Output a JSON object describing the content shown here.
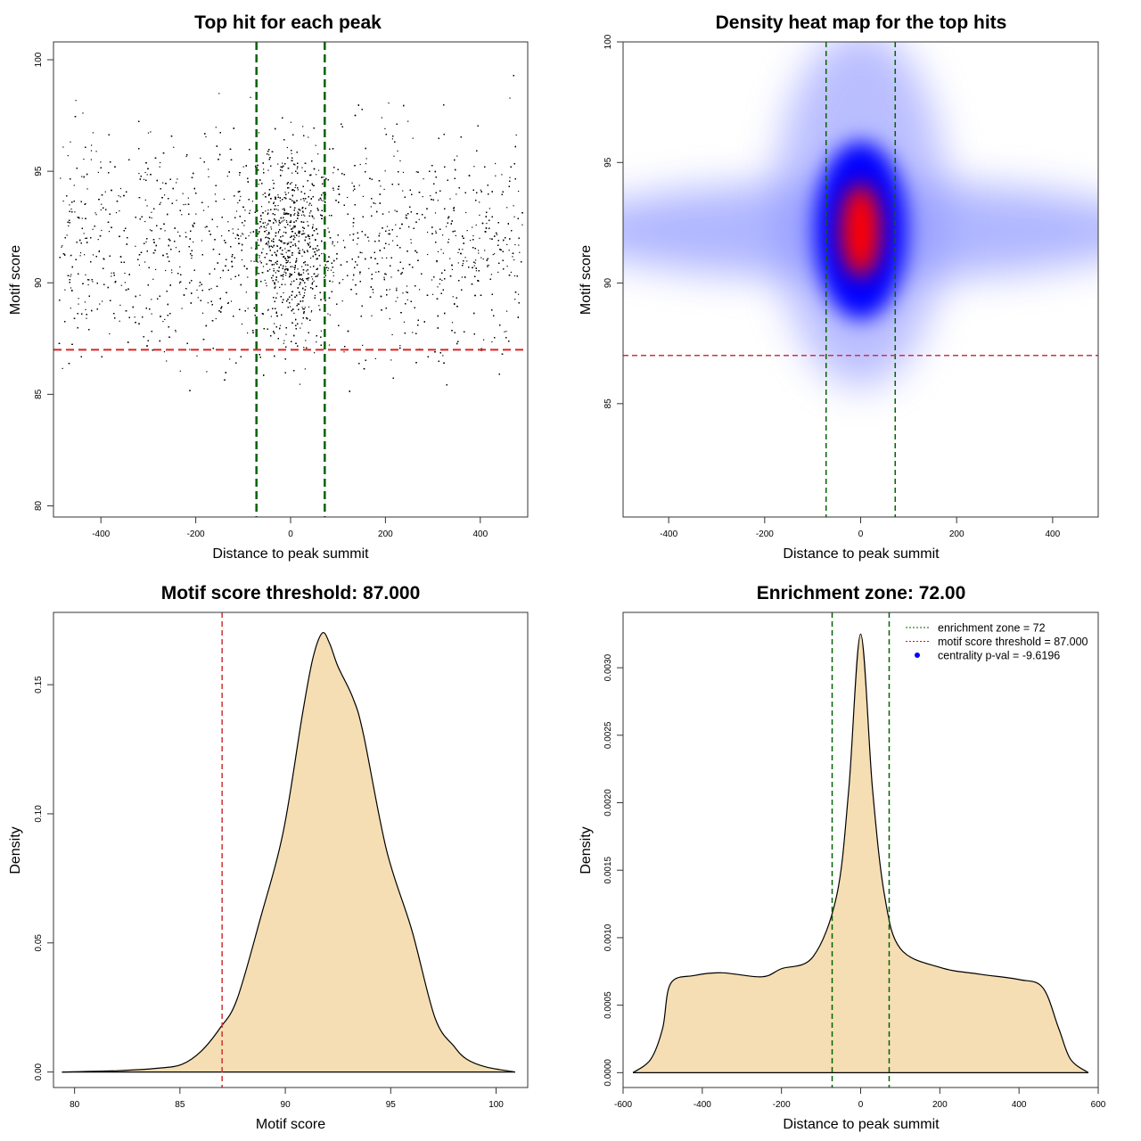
{
  "chart_data": [
    {
      "type": "scatter",
      "title": "Top hit for each peak",
      "xlabel": "Distance to peak summit",
      "ylabel": "Motif score",
      "xlim": [
        -500,
        500
      ],
      "ylim": [
        79.5,
        100.8
      ],
      "xticks": [
        -400,
        -200,
        0,
        200,
        400
      ],
      "yticks": [
        80,
        85,
        90,
        95,
        100
      ],
      "points_description_visible": null,
      "vlines": [
        -72,
        72
      ],
      "hline": 87,
      "colors": {
        "points": "#000000",
        "vlines": "#006400",
        "hline": "#dd2222"
      }
    },
    {
      "type": "heatmap",
      "title": "Density heat map for the top hits",
      "xlabel": "Distance to peak summit",
      "ylabel": "Motif score",
      "xlim": [
        -495,
        495
      ],
      "ylim": [
        80.3,
        100
      ],
      "xticks": [
        -400,
        -200,
        0,
        200,
        400
      ],
      "yticks": [
        85,
        90,
        95,
        100
      ],
      "density_peak": {
        "x": 0,
        "y": 92
      },
      "vlines": [
        -72,
        72
      ],
      "hline": 87,
      "colors": {
        "low": "#ffffff",
        "mid": "#0000ff",
        "high": "#ff0000",
        "vlines": "#006400",
        "hline": "#cc3344"
      }
    },
    {
      "type": "area",
      "title": "Motif score threshold: 87.000",
      "xlabel": "Motif score",
      "ylabel": "Density",
      "xlim": [
        79,
        101.5
      ],
      "ylim": [
        -0.006,
        0.178
      ],
      "xticks": [
        80,
        85,
        90,
        95,
        100
      ],
      "yticks": [
        0.0,
        0.05,
        0.1,
        0.15
      ],
      "ytick_labels": [
        "0.00",
        "0.05",
        "0.10",
        "0.15"
      ],
      "x": [
        79.4,
        82,
        84,
        85.1,
        86,
        86.9,
        87.7,
        88.8,
        89.9,
        90.8,
        91.3,
        91.75,
        92.1,
        92.5,
        93.2,
        93.7,
        94.8,
        96.0,
        97.1,
        98.0,
        98.6,
        99.5,
        100.9
      ],
      "y": [
        0,
        0.0005,
        0.0015,
        0.003,
        0.008,
        0.017,
        0.028,
        0.059,
        0.093,
        0.138,
        0.16,
        0.17,
        0.166,
        0.157,
        0.145,
        0.131,
        0.086,
        0.055,
        0.021,
        0.01,
        0.005,
        0.002,
        0
      ],
      "vline": 87,
      "colors": {
        "fill": "#f5deb3",
        "line": "#000000",
        "vline": "#cc3333"
      }
    },
    {
      "type": "area",
      "title": "Enrichment zone: 72.00",
      "xlabel": "Distance to peak summit",
      "ylabel": "Density",
      "xlim": [
        -600,
        600
      ],
      "ylim": [
        -0.00011,
        0.00341
      ],
      "xticks": [
        -600,
        -400,
        -200,
        0,
        200,
        400,
        600
      ],
      "yticks": [
        0.0,
        0.0005,
        0.001,
        0.0015,
        0.002,
        0.0025,
        0.003
      ],
      "ytick_labels": [
        "0.0000",
        "0.0005",
        "0.0010",
        "0.0015",
        "0.0020",
        "0.0025",
        "0.0030"
      ],
      "x": [
        -575,
        -530,
        -500,
        -480,
        -420,
        -350,
        -250,
        -200,
        -120,
        -60,
        -30,
        0,
        30,
        60,
        100,
        200,
        300,
        400,
        460,
        500,
        530,
        575
      ],
      "y": [
        0,
        0.0001,
        0.00033,
        0.00066,
        0.00072,
        0.00074,
        0.00071,
        0.00077,
        0.00086,
        0.00132,
        0.0021,
        0.00325,
        0.0021,
        0.00132,
        0.00092,
        0.00078,
        0.00073,
        0.00069,
        0.00063,
        0.00033,
        0.0001,
        0
      ],
      "vlines": [
        -72,
        72
      ],
      "legend": {
        "placement": "top-right",
        "entries": [
          {
            "label": "enrichment zone = 72",
            "color": "#006400",
            "style": "dotted-line"
          },
          {
            "label": "motif score threshold = 87.000",
            "color": "#ff0000",
            "style": "dotted-line"
          },
          {
            "label": "centrality p-val = -9.6196",
            "color": "#0000ff",
            "style": "point"
          }
        ]
      },
      "colors": {
        "fill": "#f5deb3",
        "line": "#000000",
        "vlines": "#006400"
      }
    }
  ]
}
